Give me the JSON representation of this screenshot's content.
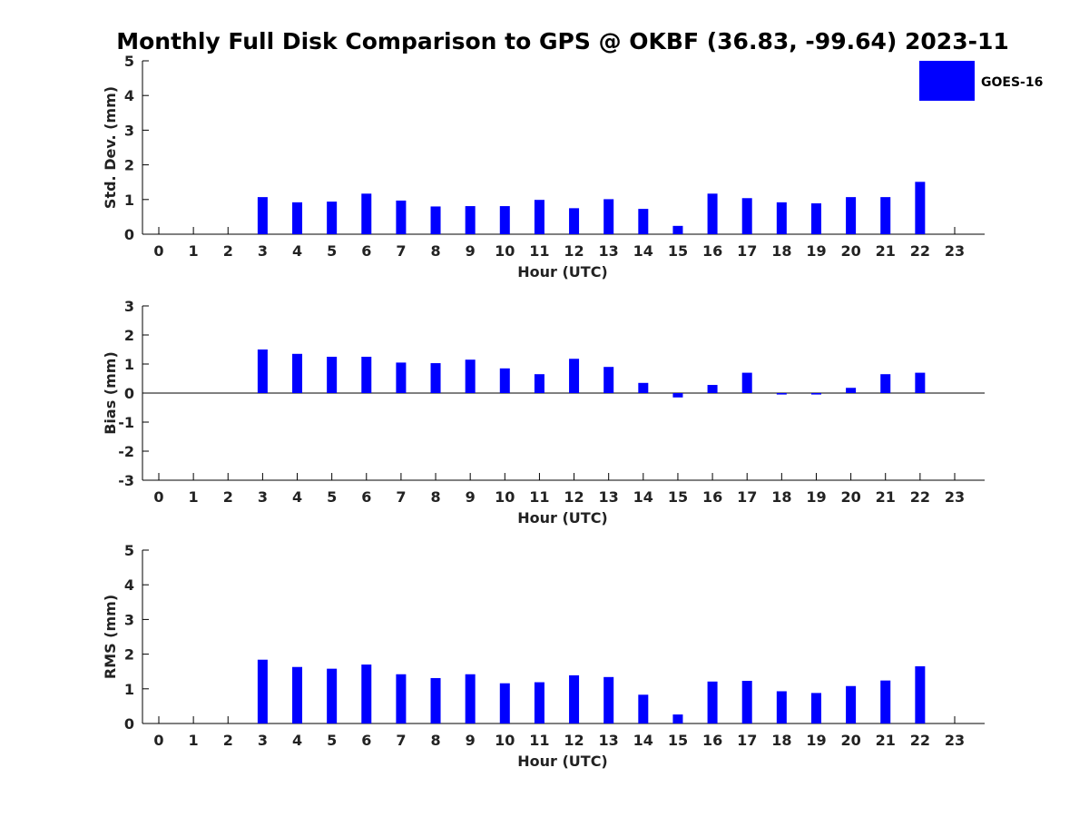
{
  "chart_data": {
    "type": "bar",
    "title": "Monthly Full Disk Comparison to GPS @ OKBF (36.83, -99.64) 2023-11",
    "legend": {
      "label": "GOES-16",
      "color": "#0000ff",
      "placement": "top-right"
    },
    "categories": [
      "0",
      "1",
      "2",
      "3",
      "4",
      "5",
      "6",
      "7",
      "8",
      "9",
      "10",
      "11",
      "12",
      "13",
      "14",
      "15",
      "16",
      "17",
      "18",
      "19",
      "20",
      "21",
      "22",
      "23"
    ],
    "panels": [
      {
        "name": "std-dev",
        "ylabel": "Std. Dev. (mm)",
        "xlabel": "Hour (UTC)",
        "ylim": [
          0,
          5
        ],
        "yticks": [
          0,
          1,
          2,
          3,
          4,
          5
        ],
        "series": [
          {
            "name": "GOES-16",
            "values": [
              null,
              null,
              null,
              1.07,
              0.92,
              0.94,
              1.17,
              0.97,
              0.8,
              0.81,
              0.81,
              0.99,
              0.75,
              1.01,
              0.73,
              0.24,
              1.17,
              1.04,
              0.92,
              0.89,
              1.07,
              1.07,
              1.51,
              null
            ]
          }
        ]
      },
      {
        "name": "bias",
        "ylabel": "Bias (mm)",
        "xlabel": "Hour (UTC)",
        "ylim": [
          -3,
          3
        ],
        "yticks": [
          -3,
          -2,
          -1,
          0,
          1,
          2,
          3
        ],
        "zero_line": true,
        "series": [
          {
            "name": "GOES-16",
            "values": [
              null,
              null,
              null,
              1.5,
              1.35,
              1.25,
              1.25,
              1.05,
              1.03,
              1.15,
              0.85,
              0.65,
              1.18,
              0.9,
              0.35,
              -0.15,
              0.28,
              0.7,
              -0.05,
              -0.05,
              0.18,
              0.65,
              0.7,
              null
            ]
          }
        ]
      },
      {
        "name": "rms",
        "ylabel": "RMS (mm)",
        "xlabel": "Hour (UTC)",
        "ylim": [
          0,
          5
        ],
        "yticks": [
          0,
          1,
          2,
          3,
          4,
          5
        ],
        "series": [
          {
            "name": "GOES-16",
            "values": [
              null,
              null,
              null,
              1.84,
              1.63,
              1.58,
              1.7,
              1.42,
              1.31,
              1.42,
              1.16,
              1.19,
              1.39,
              1.34,
              0.83,
              0.26,
              1.21,
              1.23,
              0.93,
              0.88,
              1.08,
              1.24,
              1.65,
              null
            ]
          }
        ]
      }
    ]
  }
}
